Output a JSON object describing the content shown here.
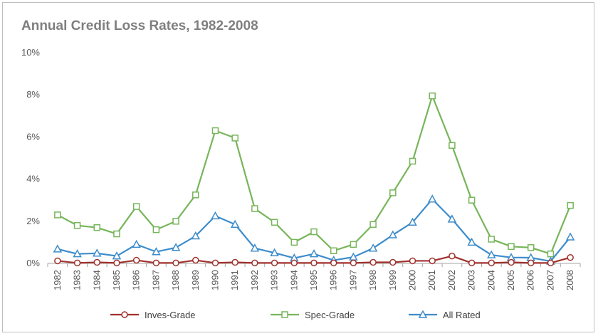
{
  "chart_data": {
    "type": "line",
    "title": "Annual Credit Loss Rates, 1982-2008",
    "xlabel": "",
    "ylabel": "",
    "ylim": [
      0,
      10
    ],
    "y_ticks": [
      "0%",
      "2%",
      "4%",
      "6%",
      "8%",
      "10%"
    ],
    "grid": false,
    "legend_position": "bottom",
    "categories": [
      "1982",
      "1983",
      "1984",
      "1985",
      "1986",
      "1987",
      "1988",
      "1989",
      "1990",
      "1991",
      "1992",
      "1993",
      "1994",
      "1995",
      "1996",
      "1997",
      "1998",
      "1999",
      "2000",
      "2001",
      "2002",
      "2003",
      "2004",
      "2005",
      "2006",
      "2007",
      "2008"
    ],
    "series": [
      {
        "name": "Inves-Grade",
        "color": "#a0312c",
        "marker": "circle",
        "values": [
          0.12,
          0.02,
          0.05,
          0.02,
          0.15,
          0.02,
          0.02,
          0.15,
          0.02,
          0.05,
          0.02,
          0.02,
          0.02,
          0.02,
          0.02,
          0.02,
          0.05,
          0.05,
          0.12,
          0.12,
          0.35,
          0.02,
          0.02,
          0.05,
          0.02,
          0.02,
          0.28
        ]
      },
      {
        "name": "Spec-Grade",
        "color": "#77b55a",
        "marker": "square",
        "values": [
          2.3,
          1.8,
          1.7,
          1.4,
          2.7,
          1.6,
          2.0,
          3.25,
          6.3,
          5.95,
          2.6,
          1.95,
          1.0,
          1.5,
          0.6,
          0.9,
          1.85,
          3.35,
          4.85,
          7.95,
          5.6,
          3.0,
          1.15,
          0.8,
          0.75,
          0.45,
          2.75
        ]
      },
      {
        "name": "All Rated",
        "color": "#3d8ccb",
        "marker": "triangle",
        "values": [
          0.68,
          0.45,
          0.48,
          0.35,
          0.9,
          0.55,
          0.75,
          1.3,
          2.25,
          1.85,
          0.72,
          0.5,
          0.25,
          0.45,
          0.15,
          0.3,
          0.72,
          1.35,
          1.95,
          3.05,
          2.1,
          1.0,
          0.4,
          0.28,
          0.27,
          0.1,
          1.25
        ]
      }
    ]
  }
}
